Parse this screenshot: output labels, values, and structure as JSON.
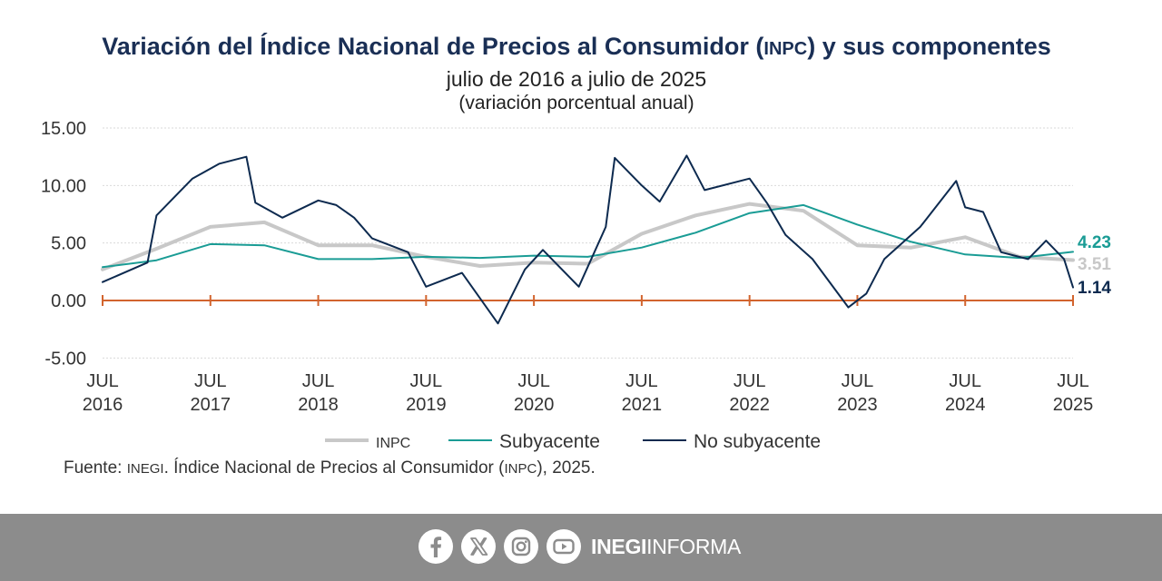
{
  "header": {
    "title_pre": "Variación del Índice Nacional de Precios al Consumidor (",
    "title_abbr": "INPC",
    "title_post": ") y sus componentes",
    "subtitle": "julio de 2016 a julio de 2025",
    "unit": "(variación porcentual anual)"
  },
  "chart_data": {
    "type": "line",
    "x_tick_labels": [
      {
        "top": "JUL",
        "bottom": "2016"
      },
      {
        "top": "JUL",
        "bottom": "2017"
      },
      {
        "top": "JUL",
        "bottom": "2018"
      },
      {
        "top": "JUL",
        "bottom": "2019"
      },
      {
        "top": "JUL",
        "bottom": "2020"
      },
      {
        "top": "JUL",
        "bottom": "2021"
      },
      {
        "top": "JUL",
        "bottom": "2022"
      },
      {
        "top": "JUL",
        "bottom": "2023"
      },
      {
        "top": "JUL",
        "bottom": "2024"
      },
      {
        "top": "JUL",
        "bottom": "2025"
      }
    ],
    "y_ticks": [
      "15.00",
      "10.00",
      "5.00",
      "0.00",
      "-5.00"
    ],
    "ylim": [
      -5,
      15
    ],
    "x_range_months": [
      0,
      108
    ],
    "series": [
      {
        "name": "INPC",
        "color": "#c8c8c8",
        "end_label": "3.51",
        "points": [
          [
            0,
            2.7
          ],
          [
            6,
            4.5
          ],
          [
            12,
            6.4
          ],
          [
            18,
            6.8
          ],
          [
            24,
            4.8
          ],
          [
            30,
            4.8
          ],
          [
            36,
            3.8
          ],
          [
            42,
            3.0
          ],
          [
            48,
            3.3
          ],
          [
            54,
            3.2
          ],
          [
            60,
            5.8
          ],
          [
            66,
            7.4
          ],
          [
            72,
            8.4
          ],
          [
            78,
            7.8
          ],
          [
            84,
            4.8
          ],
          [
            90,
            4.6
          ],
          [
            96,
            5.5
          ],
          [
            102,
            3.8
          ],
          [
            108,
            3.51
          ]
        ]
      },
      {
        "name": "Subyacente",
        "color": "#1a9c95",
        "end_label": "4.23",
        "points": [
          [
            0,
            2.9
          ],
          [
            6,
            3.5
          ],
          [
            12,
            4.9
          ],
          [
            18,
            4.8
          ],
          [
            24,
            3.6
          ],
          [
            30,
            3.6
          ],
          [
            36,
            3.8
          ],
          [
            42,
            3.7
          ],
          [
            48,
            3.9
          ],
          [
            54,
            3.8
          ],
          [
            60,
            4.6
          ],
          [
            66,
            5.9
          ],
          [
            72,
            7.6
          ],
          [
            78,
            8.3
          ],
          [
            84,
            6.6
          ],
          [
            90,
            5.1
          ],
          [
            96,
            4.0
          ],
          [
            102,
            3.7
          ],
          [
            108,
            4.23
          ]
        ]
      },
      {
        "name": "No subyacente",
        "color": "#0d2a4f",
        "end_label": "1.14",
        "points": [
          [
            0,
            1.6
          ],
          [
            5,
            3.3
          ],
          [
            6,
            7.4
          ],
          [
            10,
            10.6
          ],
          [
            13,
            11.9
          ],
          [
            16,
            12.5
          ],
          [
            17,
            8.5
          ],
          [
            20,
            7.2
          ],
          [
            24,
            8.7
          ],
          [
            26,
            8.3
          ],
          [
            28,
            7.2
          ],
          [
            30,
            5.4
          ],
          [
            34,
            4.2
          ],
          [
            36,
            1.2
          ],
          [
            40,
            2.4
          ],
          [
            44,
            -2.0
          ],
          [
            47,
            2.7
          ],
          [
            49,
            4.4
          ],
          [
            53,
            1.2
          ],
          [
            56,
            6.4
          ],
          [
            57,
            12.4
          ],
          [
            60,
            10.0
          ],
          [
            62,
            8.6
          ],
          [
            65,
            12.6
          ],
          [
            67,
            9.6
          ],
          [
            72,
            10.6
          ],
          [
            74,
            8.4
          ],
          [
            76,
            5.7
          ],
          [
            79,
            3.6
          ],
          [
            83,
            -0.6
          ],
          [
            85,
            0.6
          ],
          [
            87,
            3.6
          ],
          [
            91,
            6.4
          ],
          [
            95,
            10.4
          ],
          [
            96,
            8.1
          ],
          [
            98,
            7.7
          ],
          [
            100,
            4.2
          ],
          [
            103,
            3.6
          ],
          [
            105,
            5.2
          ],
          [
            107,
            3.6
          ],
          [
            108,
            1.14
          ]
        ]
      }
    ]
  },
  "legend": [
    {
      "label": "INPC",
      "color": "#c8c8c8",
      "small_caps": true
    },
    {
      "label": "Subyacente",
      "color": "#1a9c95",
      "small_caps": false
    },
    {
      "label": "No subyacente",
      "color": "#0d2a4f",
      "small_caps": false
    }
  ],
  "source": {
    "pre": "Fuente: ",
    "org": "INEGI",
    "mid": ". Índice Nacional de Precios al Consumidor (",
    "abbr": "INPC",
    "post": "), 2025."
  },
  "footer": {
    "icons": [
      "facebook-icon",
      "x-icon",
      "instagram-icon",
      "youtube-icon"
    ],
    "brand_bold": "INEGI",
    "brand_regular": "INFORMA"
  }
}
